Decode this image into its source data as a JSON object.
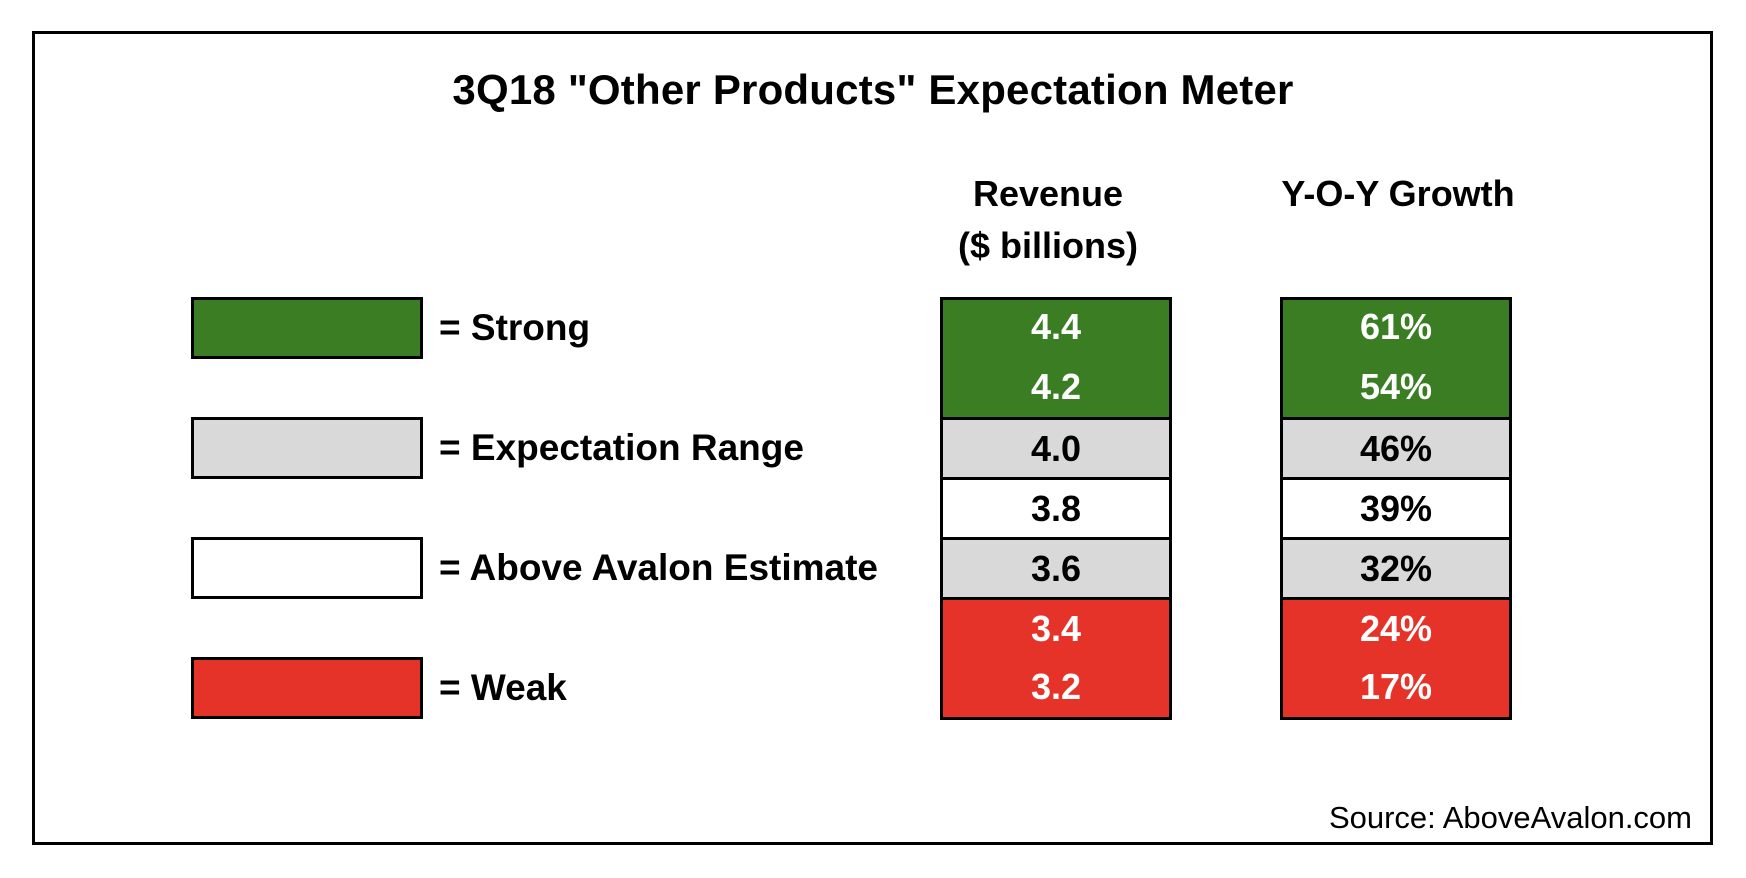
{
  "chart_data": {
    "type": "table",
    "title": "3Q18 \"Other Products\" Expectation Meter",
    "columns": [
      {
        "line1": "Revenue",
        "line2": "($ billions)"
      },
      {
        "line1": "Y-O-Y Growth",
        "line2": ""
      }
    ],
    "rows": [
      {
        "revenue": "4.4",
        "growth": "61%",
        "category": "strong"
      },
      {
        "revenue": "4.2",
        "growth": "54%",
        "category": "strong"
      },
      {
        "revenue": "4.0",
        "growth": "46%",
        "category": "range"
      },
      {
        "revenue": "3.8",
        "growth": "39%",
        "category": "estimate"
      },
      {
        "revenue": "3.6",
        "growth": "32%",
        "category": "range"
      },
      {
        "revenue": "3.4",
        "growth": "24%",
        "category": "weak"
      },
      {
        "revenue": "3.2",
        "growth": "17%",
        "category": "weak"
      }
    ],
    "legend": [
      {
        "key": "strong",
        "label": "= Strong",
        "color": "#3a7d22",
        "text_color": "#ffffff"
      },
      {
        "key": "range",
        "label": "= Expectation Range",
        "color": "#d9d9d9",
        "text_color": "#000000"
      },
      {
        "key": "estimate",
        "label": "= Above Avalon Estimate",
        "color": "#ffffff",
        "text_color": "#000000"
      },
      {
        "key": "weak",
        "label": "= Weak",
        "color": "#e63329",
        "text_color": "#ffffff"
      }
    ],
    "source": "Source: AboveAvalon.com"
  }
}
